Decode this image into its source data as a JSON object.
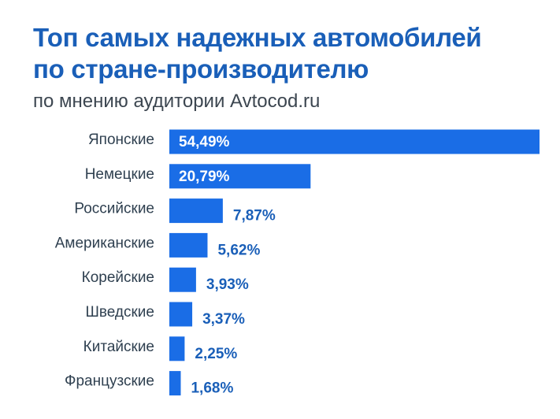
{
  "header": {
    "title_line1": "Топ самых надежных автомобилей",
    "title_line2": "по стране-производителю",
    "subtitle": "по мнению аудитории Avtocod.ru"
  },
  "colors": {
    "bar": "#1a6de6",
    "title": "#1a5fb8",
    "value_inside": "#ffffff",
    "value_outside": "#1a5fb8",
    "category_text": "#2f4050"
  },
  "chart_data": {
    "type": "bar",
    "orientation": "horizontal",
    "title": "Топ самых надежных автомобилей по стране-производителю",
    "subtitle": "по мнению аудитории Avtocod.ru",
    "categories": [
      "Японские",
      "Немецкие",
      "Российские",
      "Американские",
      "Корейские",
      "Шведские",
      "Китайские",
      "Французские"
    ],
    "values": [
      54.49,
      20.79,
      7.87,
      5.62,
      3.93,
      3.37,
      2.25,
      1.68
    ],
    "value_labels": [
      "54,49%",
      "20,79%",
      "7,87%",
      "5,62%",
      "3,93%",
      "3,37%",
      "2,25%",
      "1,68%"
    ],
    "xlim": [
      0,
      54.49
    ],
    "unit": "%",
    "grid": false,
    "legend": "none"
  }
}
